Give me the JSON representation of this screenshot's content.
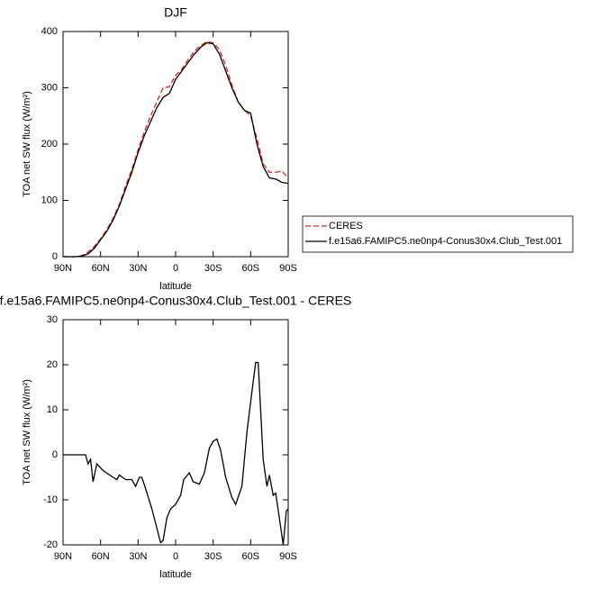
{
  "chart_data": [
    {
      "type": "line",
      "title": "DJF",
      "xlabel": "latitude",
      "ylabel": "TOA net SW flux (W/m²)",
      "x": [
        90,
        85,
        80,
        75,
        70,
        65,
        60,
        55,
        50,
        45,
        40,
        35,
        30,
        25,
        20,
        15,
        10,
        5,
        0,
        -5,
        -10,
        -15,
        -20,
        -25,
        -30,
        -35,
        -40,
        -45,
        -50,
        -55,
        -60,
        -65,
        -70,
        -75,
        -80,
        -85,
        -90
      ],
      "series": [
        {
          "name": "CERES",
          "color": "#e02020",
          "linestyle": "dashed",
          "values": [
            0,
            0,
            0,
            2,
            8,
            18,
            32,
            48,
            68,
            93,
            125,
            155,
            190,
            222,
            250,
            275,
            300,
            302,
            322,
            333,
            350,
            365,
            375,
            382,
            380,
            368,
            340,
            305,
            275,
            260,
            250,
            210,
            165,
            150,
            150,
            152,
            140
          ]
        },
        {
          "name": "f.e15a6.FAMIPC5.ne0np4-Conus30x4.Club_Test.001",
          "color": "#000000",
          "linestyle": "solid",
          "values": [
            0,
            0,
            0,
            1,
            5,
            15,
            30,
            45,
            65,
            90,
            120,
            150,
            185,
            215,
            240,
            265,
            283,
            290,
            315,
            330,
            345,
            360,
            372,
            380,
            378,
            360,
            330,
            300,
            275,
            260,
            255,
            200,
            160,
            140,
            138,
            132,
            130
          ]
        }
      ],
      "xlim": [
        90,
        -90
      ],
      "xticks": [
        {
          "value": 90,
          "label": "90N"
        },
        {
          "value": 60,
          "label": "60N"
        },
        {
          "value": 30,
          "label": "30N"
        },
        0,
        {
          "value": -30,
          "label": "30S"
        },
        {
          "value": -60,
          "label": "60S"
        },
        {
          "value": -90,
          "label": "90S"
        }
      ],
      "ylim": [
        0,
        400
      ],
      "yticks": [
        0,
        100,
        200,
        300,
        400
      ],
      "legend": "right"
    },
    {
      "type": "line",
      "title": "f.e15a6.FAMIPC5.ne0np4-Conus30x4.Club_Test.001 - CERES",
      "xlabel": "latitude",
      "ylabel": "TOA net SW flux (W/m²)",
      "x": [
        90,
        72,
        70,
        68,
        66,
        63,
        58,
        50,
        47,
        45,
        40,
        35,
        32,
        29,
        27,
        24,
        19,
        12,
        10,
        7,
        4,
        0,
        -4,
        -6.5,
        -11,
        -14,
        -19,
        -23,
        -27,
        -30,
        -33,
        -36,
        -40,
        -45,
        -48,
        -53,
        -57,
        -61,
        -64,
        -66,
        -70,
        -73,
        -75,
        -78,
        -80,
        -85,
        -86,
        -88.5,
        -90
      ],
      "values": [
        0,
        0,
        -2,
        -1,
        -6,
        -2,
        -3.5,
        -5,
        -5.5,
        -4.5,
        -5.5,
        -5.5,
        -7,
        -5,
        -5,
        -7.5,
        -12,
        -19.5,
        -19,
        -14,
        -12,
        -11,
        -9,
        -5.5,
        -4,
        -6,
        -6.5,
        -4,
        1.5,
        3,
        3.5,
        1,
        -5,
        -9.5,
        -11,
        -7,
        5,
        14,
        20.5,
        20.5,
        -1,
        -7,
        -4.5,
        -9,
        -8.5,
        -18,
        -20,
        -12.5,
        -12
      ],
      "color": "#000000",
      "linestyle": "solid",
      "xlim": [
        90,
        -90
      ],
      "xticks": [
        {
          "value": 90,
          "label": "90N"
        },
        {
          "value": 60,
          "label": "60N"
        },
        {
          "value": 30,
          "label": "30N"
        },
        0,
        {
          "value": -30,
          "label": "30S"
        },
        {
          "value": -60,
          "label": "60S"
        },
        {
          "value": -90,
          "label": "90S"
        }
      ],
      "ylim": [
        -20,
        30
      ],
      "yticks": [
        -20,
        -10,
        0,
        10,
        20,
        30
      ]
    }
  ]
}
